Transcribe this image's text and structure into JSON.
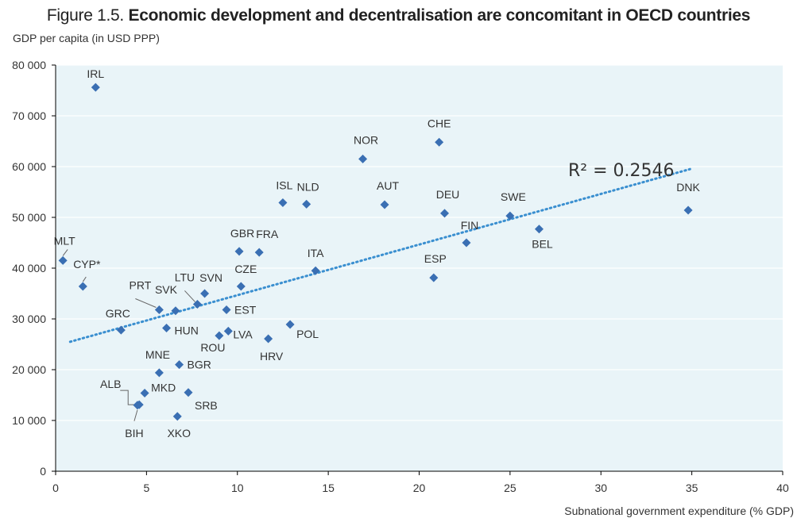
{
  "figure": {
    "number": "Figure 1.5.",
    "title": "Economic development and decentralisation are concomitant in OECD countries"
  },
  "chart_data": {
    "type": "scatter",
    "title": "Figure 1.5. Economic development and decentralisation are concomitant in OECD countries",
    "xlabel": "Subnational government expenditure (% GDP)",
    "ylabel": "GDP per capita (in USD PPP)",
    "xlim": [
      0,
      40
    ],
    "ylim": [
      0,
      80000
    ],
    "x_ticks": [
      0,
      5,
      10,
      15,
      20,
      25,
      30,
      35,
      40
    ],
    "y_ticks": [
      0,
      10000,
      20000,
      30000,
      40000,
      50000,
      60000,
      70000,
      80000
    ],
    "y_tick_labels": [
      "0",
      "10 000",
      "20 000",
      "30 000",
      "40 000",
      "50 000",
      "60 000",
      "70 000",
      "80 000"
    ],
    "x_tick_labels": [
      "0",
      "5",
      "10",
      "15",
      "20",
      "25",
      "30",
      "35",
      "40"
    ],
    "grid": true,
    "marker_color": "#3a6fb3",
    "trendline_color": "#3a8fd0",
    "background_color": "#e9f4f8",
    "points": [
      {
        "label": "IRL",
        "x": 2.2,
        "y": 75600
      },
      {
        "label": "MLT",
        "x": 0.4,
        "y": 41500
      },
      {
        "label": "CYP*",
        "x": 1.5,
        "y": 36400
      },
      {
        "label": "GRC",
        "x": 3.6,
        "y": 27800
      },
      {
        "label": "PRT",
        "x": 5.7,
        "y": 31800
      },
      {
        "label": "SVK",
        "x": 6.6,
        "y": 31600
      },
      {
        "label": "HUN",
        "x": 6.1,
        "y": 28200
      },
      {
        "label": "LTU",
        "x": 7.8,
        "y": 32900
      },
      {
        "label": "SVN",
        "x": 8.2,
        "y": 35000
      },
      {
        "label": "ROU",
        "x": 9.0,
        "y": 26700
      },
      {
        "label": "LVA",
        "x": 9.5,
        "y": 27600
      },
      {
        "label": "EST",
        "x": 9.4,
        "y": 31800
      },
      {
        "label": "CZE",
        "x": 10.2,
        "y": 36400
      },
      {
        "label": "GBR",
        "x": 10.1,
        "y": 43300
      },
      {
        "label": "FRA",
        "x": 11.2,
        "y": 43100
      },
      {
        "label": "HRV",
        "x": 11.7,
        "y": 26100
      },
      {
        "label": "POL",
        "x": 12.9,
        "y": 28900
      },
      {
        "label": "ITA",
        "x": 14.3,
        "y": 39500
      },
      {
        "label": "ISL",
        "x": 12.5,
        "y": 52900
      },
      {
        "label": "NLD",
        "x": 13.8,
        "y": 52600
      },
      {
        "label": "NOR",
        "x": 16.9,
        "y": 61500
      },
      {
        "label": "AUT",
        "x": 18.1,
        "y": 52500
      },
      {
        "label": "ESP",
        "x": 20.8,
        "y": 38100
      },
      {
        "label": "CHE",
        "x": 21.1,
        "y": 64800
      },
      {
        "label": "DEU",
        "x": 21.4,
        "y": 50800
      },
      {
        "label": "FIN",
        "x": 22.6,
        "y": 45000
      },
      {
        "label": "SWE",
        "x": 25.0,
        "y": 50300
      },
      {
        "label": "BEL",
        "x": 26.6,
        "y": 47700
      },
      {
        "label": "DNK",
        "x": 34.8,
        "y": 51400
      },
      {
        "label": "MNE",
        "x": 5.7,
        "y": 19400
      },
      {
        "label": "BGR",
        "x": 6.8,
        "y": 21000
      },
      {
        "label": "MKD",
        "x": 4.9,
        "y": 15400
      },
      {
        "label": "ALB",
        "x": 4.6,
        "y": 13100
      },
      {
        "label": "BIH",
        "x": 4.5,
        "y": 13000
      },
      {
        "label": "SRB",
        "x": 7.3,
        "y": 15500
      },
      {
        "label": "XKO",
        "x": 6.7,
        "y": 10800
      }
    ],
    "trendline": {
      "x_start": 0.8,
      "y_start": 25500,
      "x_end": 34.9,
      "y_end": 59500
    },
    "annotation": "R² = 0.2546"
  }
}
